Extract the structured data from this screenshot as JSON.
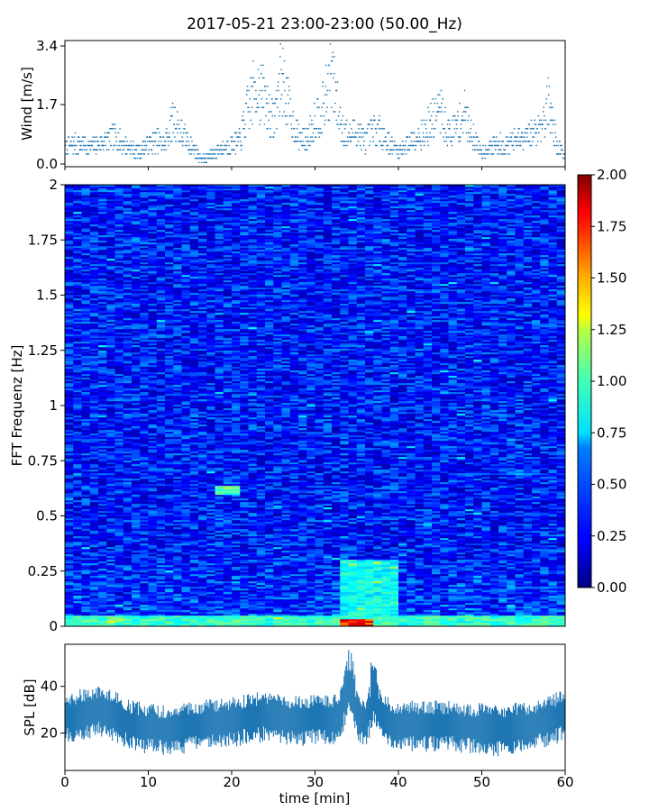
{
  "chart_data": [
    {
      "type": "scatter",
      "title": "2017-05-21 23:00-23:00 (50.00_Hz)",
      "ylabel": "Wind [m/s]",
      "ylim": [
        0,
        3.4
      ],
      "yticks": [
        "0.0",
        "1.7",
        "3.4"
      ],
      "ytick_values": [
        0,
        1.7,
        3.4
      ],
      "xlim": [
        0,
        60
      ],
      "color": "#1f77b4",
      "series": [
        {
          "x": [
            0,
            1,
            2,
            3,
            4,
            5,
            6,
            7,
            8,
            9,
            10,
            11,
            12,
            13,
            14,
            15,
            16,
            17,
            18,
            19,
            20,
            21,
            22,
            23,
            24,
            25,
            26,
            27,
            28,
            29,
            30,
            31,
            32,
            33,
            34,
            35,
            36,
            37,
            38,
            39,
            40,
            41,
            42,
            43,
            44,
            45,
            46,
            47,
            48,
            49,
            50,
            51,
            52,
            53,
            54,
            55,
            56,
            57,
            58,
            59,
            60
          ],
          "values": [
            0.5,
            0.6,
            0.6,
            0.5,
            0.6,
            0.7,
            0.8,
            0.6,
            0.5,
            0.4,
            0.6,
            0.7,
            0.6,
            1.3,
            0.9,
            0.6,
            0.3,
            0.2,
            0.4,
            0.5,
            0.6,
            0.7,
            1.6,
            2.2,
            1.8,
            1.2,
            2.5,
            1.4,
            0.8,
            0.7,
            1.3,
            1.6,
            2.5,
            1.2,
            0.8,
            1.0,
            0.7,
            1.0,
            0.9,
            0.6,
            0.4,
            0.6,
            0.8,
            0.9,
            1.2,
            1.5,
            0.9,
            1.1,
            1.4,
            0.8,
            0.4,
            0.5,
            0.6,
            0.6,
            0.7,
            0.7,
            0.9,
            1.1,
            1.7,
            0.6,
            0.3
          ]
        }
      ]
    },
    {
      "type": "heatmap",
      "ylabel": "FFT Frequenz [Hz]",
      "ylim": [
        0,
        2
      ],
      "yticks": [
        "0",
        "0.25",
        "0.5",
        "0.75",
        "1",
        "1.25",
        "1.5",
        "1.75",
        "2"
      ],
      "ytick_values": [
        0,
        0.25,
        0.5,
        0.75,
        1,
        1.25,
        1.5,
        1.75,
        2
      ],
      "xlim": [
        0,
        60
      ],
      "colormap": "jet",
      "colorbar": {
        "ticks": [
          "0.00",
          "0.25",
          "0.50",
          "0.75",
          "1.00",
          "1.25",
          "1.50",
          "1.75",
          "2.00"
        ],
        "tick_values": [
          0,
          0.25,
          0.5,
          0.75,
          1,
          1.25,
          1.5,
          1.75,
          2
        ],
        "range": [
          0,
          2
        ]
      },
      "features": [
        {
          "x": [
            33,
            40
          ],
          "y": [
            0,
            0.3
          ],
          "level": 0.9
        },
        {
          "x": [
            33,
            37
          ],
          "y": [
            0,
            0.03
          ],
          "level": 2.0
        },
        {
          "x": [
            18,
            21
          ],
          "y": [
            0.6,
            0.64
          ],
          "level": 1.1
        },
        {
          "x": [
            0,
            60
          ],
          "y": [
            0,
            0.05
          ],
          "level": 1.0
        }
      ]
    },
    {
      "type": "area",
      "ylabel": "SPL [dB]",
      "xlabel": "time [min]",
      "xlim": [
        0,
        60
      ],
      "xticks": [
        "0",
        "10",
        "20",
        "30",
        "40",
        "50",
        "60"
      ],
      "xtick_values": [
        0,
        10,
        20,
        30,
        40,
        50,
        60
      ],
      "ylim": [
        4,
        58
      ],
      "yticks": [
        "20",
        "40"
      ],
      "ytick_values": [
        20,
        40
      ],
      "color": "#1f77b4",
      "series": [
        {
          "x": [
            0,
            2,
            4,
            6,
            8,
            10,
            12,
            14,
            16,
            18,
            20,
            22,
            24,
            26,
            28,
            30,
            32,
            33,
            34,
            35,
            36,
            37,
            38,
            39,
            40,
            42,
            44,
            46,
            48,
            50,
            52,
            54,
            56,
            58,
            60
          ],
          "values": [
            27,
            29,
            30,
            28,
            24,
            23,
            22,
            23,
            24,
            25,
            26,
            27,
            28,
            27,
            26,
            27,
            26,
            28,
            40,
            30,
            24,
            36,
            27,
            25,
            24,
            24,
            24,
            24,
            23,
            23,
            22,
            23,
            24,
            26,
            29
          ]
        }
      ]
    }
  ]
}
